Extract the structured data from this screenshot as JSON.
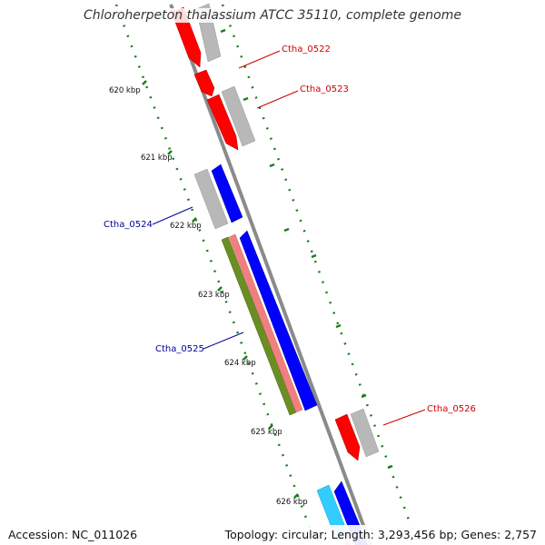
{
  "title": "Chloroherpeton thalassium ATCC 35110, complete genome",
  "footer": {
    "accession": "Accession: NC_011026",
    "topology": "Topology: circular; Length: 3,293,456 bp; Genes: 2,757"
  },
  "colors": {
    "backbone": "#8a8a8a",
    "tick": "#1a7f1a",
    "forward_cds": "#ff0000",
    "reverse_cds": "#0000ff",
    "rrna_teal": "#33ccff",
    "gene_gray": "#b8b8b8",
    "rna_olive": "#6b8e23",
    "rna_pink": "#f08080",
    "label_red": "#cc0000",
    "label_blue": "#000099"
  },
  "kbp_labels": [
    "620 kbp",
    "621 kbp",
    "622 kbp",
    "623 kbp",
    "624 kbp",
    "625 kbp",
    "626 kbp"
  ],
  "gene_labels": [
    {
      "name": "Ctha_0522",
      "strand": "forward"
    },
    {
      "name": "Ctha_0523",
      "strand": "forward"
    },
    {
      "name": "Ctha_0524",
      "strand": "reverse"
    },
    {
      "name": "Ctha_0525",
      "strand": "reverse"
    },
    {
      "name": "Ctha_0526",
      "strand": "forward"
    }
  ]
}
